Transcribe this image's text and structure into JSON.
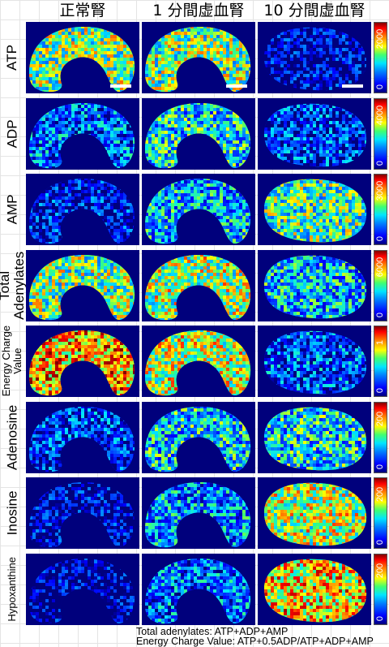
{
  "columns": [
    "正常腎",
    "1 分間虚血腎",
    "10 分間虚血腎"
  ],
  "rows": [
    {
      "label": "ATP",
      "scale_max": "2000",
      "scale_min": "0",
      "panels": [
        0.55,
        0.55,
        0.05
      ]
    },
    {
      "label": "ADP",
      "scale_max": "4000",
      "scale_min": "0",
      "panels": [
        0.25,
        0.4,
        0.18
      ]
    },
    {
      "label": "AMP",
      "scale_max": "3000",
      "scale_min": "0",
      "panels": [
        0.12,
        0.35,
        0.5
      ]
    },
    {
      "label": "Total\nAdenylates",
      "scale_max": "6000",
      "scale_min": "0",
      "panels": [
        0.55,
        0.6,
        0.35
      ]
    },
    {
      "label": "Energy Charge\nValue",
      "scale_max": "1",
      "scale_min": "0",
      "panels": [
        0.75,
        0.62,
        0.22
      ]
    },
    {
      "label": "Adenosine",
      "scale_max": "200",
      "scale_min": "0",
      "panels": [
        0.18,
        0.38,
        0.4
      ]
    },
    {
      "label": "Inosine",
      "scale_max": "200",
      "scale_min": "0",
      "panels": [
        0.05,
        0.3,
        0.6
      ]
    },
    {
      "label": "Hypoxanthine",
      "scale_max": "200",
      "scale_min": "0",
      "panels": [
        0.03,
        0.25,
        0.7
      ]
    }
  ],
  "footnotes": [
    "Total adenylates: ATP+ADP+AMP",
    "Energy Charge Value: ATP+0.5ADP/ATP+ADP+AMP"
  ]
}
